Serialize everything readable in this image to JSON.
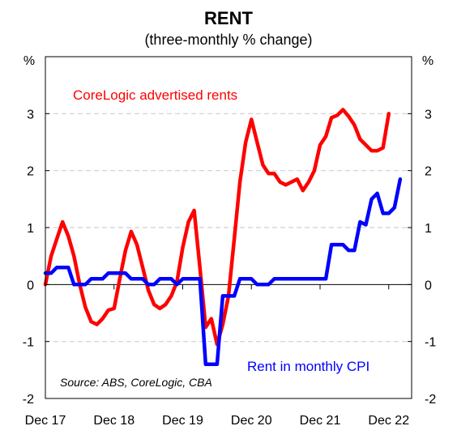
{
  "chart_data": {
    "type": "line",
    "title": "RENT",
    "subtitle": "(three-monthly % change)",
    "ylabel_left": "%",
    "ylabel_right": "%",
    "ylim": [
      -2,
      4
    ],
    "y_ticks": [
      -2,
      -1,
      0,
      1,
      2,
      3
    ],
    "x_range": [
      "2017-12",
      "2023-04"
    ],
    "x_tick_labels": [
      "Dec 17",
      "Dec 18",
      "Dec 19",
      "Dec 20",
      "Dec 21",
      "Dec 22"
    ],
    "x_tick_dates": [
      "2017-12",
      "2018-12",
      "2019-12",
      "2020-12",
      "2021-12",
      "2022-12"
    ],
    "grid": "horizontal dashed",
    "source": "Source: ABS, CoreLogic, CBA",
    "series": [
      {
        "name": "CoreLogic advertised rents",
        "color": "#ff0000",
        "x": [
          "2017-12",
          "2018-01",
          "2018-02",
          "2018-03",
          "2018-04",
          "2018-05",
          "2018-06",
          "2018-07",
          "2018-08",
          "2018-09",
          "2018-10",
          "2018-11",
          "2018-12",
          "2019-01",
          "2019-02",
          "2019-03",
          "2019-04",
          "2019-05",
          "2019-06",
          "2019-07",
          "2019-08",
          "2019-09",
          "2019-10",
          "2019-11",
          "2019-12",
          "2020-01",
          "2020-02",
          "2020-03",
          "2020-04",
          "2020-05",
          "2020-06",
          "2020-07",
          "2020-08",
          "2020-09",
          "2020-10",
          "2020-11",
          "2020-12",
          "2021-01",
          "2021-02",
          "2021-03",
          "2021-04",
          "2021-05",
          "2021-06",
          "2021-07",
          "2021-08",
          "2021-09",
          "2021-10",
          "2021-11",
          "2021-12",
          "2022-01",
          "2022-02",
          "2022-03",
          "2022-04",
          "2022-05",
          "2022-06",
          "2022-07",
          "2022-08",
          "2022-09",
          "2022-10",
          "2022-11",
          "2022-12",
          "2023-01",
          "2023-02",
          "2023-03"
        ],
        "values": [
          0.0,
          0.5,
          0.8,
          1.1,
          0.85,
          0.5,
          0.0,
          -0.4,
          -0.65,
          -0.7,
          -0.6,
          -0.45,
          -0.42,
          0.1,
          0.6,
          0.93,
          0.7,
          0.3,
          -0.1,
          -0.35,
          -0.42,
          -0.35,
          -0.2,
          0.05,
          0.65,
          1.1,
          1.3,
          0.3,
          -0.75,
          -0.6,
          -1.05,
          -0.7,
          -0.2,
          0.8,
          1.8,
          2.5,
          2.9,
          2.5,
          2.1,
          1.95,
          1.95,
          1.8,
          1.75,
          1.8,
          1.85,
          1.65,
          1.8,
          2.0,
          2.45,
          2.6,
          2.93,
          2.97,
          3.07,
          2.95,
          2.8,
          2.55,
          2.45,
          2.35,
          2.35,
          2.4,
          3.0,
          null,
          null,
          null
        ]
      },
      {
        "name": "Rent in monthly CPI",
        "color": "#0000ff",
        "x": [
          "2017-12",
          "2018-01",
          "2018-02",
          "2018-03",
          "2018-04",
          "2018-05",
          "2018-06",
          "2018-07",
          "2018-08",
          "2018-09",
          "2018-10",
          "2018-11",
          "2018-12",
          "2019-01",
          "2019-02",
          "2019-03",
          "2019-04",
          "2019-05",
          "2019-06",
          "2019-07",
          "2019-08",
          "2019-09",
          "2019-10",
          "2019-11",
          "2019-12",
          "2020-01",
          "2020-02",
          "2020-03",
          "2020-04",
          "2020-05",
          "2020-06",
          "2020-07",
          "2020-08",
          "2020-09",
          "2020-10",
          "2020-11",
          "2020-12",
          "2021-01",
          "2021-02",
          "2021-03",
          "2021-04",
          "2021-05",
          "2021-06",
          "2021-07",
          "2021-08",
          "2021-09",
          "2021-10",
          "2021-11",
          "2021-12",
          "2022-01",
          "2022-02",
          "2022-03",
          "2022-04",
          "2022-05",
          "2022-06",
          "2022-07",
          "2022-08",
          "2022-09",
          "2022-10",
          "2022-11",
          "2022-12",
          "2023-01",
          "2023-02",
          "2023-03"
        ],
        "values": [
          0.2,
          0.2,
          0.3,
          0.3,
          0.3,
          0.0,
          0.0,
          0.0,
          0.1,
          0.1,
          0.1,
          0.2,
          0.2,
          0.2,
          0.2,
          0.1,
          0.1,
          0.1,
          0.0,
          0.0,
          0.1,
          0.1,
          0.1,
          0.0,
          0.1,
          0.1,
          0.1,
          0.1,
          -1.4,
          -1.4,
          -1.4,
          -0.2,
          -0.2,
          -0.2,
          0.1,
          0.1,
          0.1,
          0.0,
          0.0,
          0.0,
          0.1,
          0.1,
          0.1,
          0.1,
          0.1,
          0.1,
          0.1,
          0.1,
          0.1,
          0.1,
          0.7,
          0.7,
          0.7,
          0.6,
          0.6,
          1.1,
          1.05,
          1.5,
          1.6,
          1.25,
          1.25,
          1.35,
          1.85,
          null
        ]
      }
    ],
    "annotations": [
      {
        "text": "CoreLogic advertised rents",
        "color": "#ff0000"
      },
      {
        "text": "Rent in monthly CPI",
        "color": "#0000ff"
      }
    ]
  }
}
